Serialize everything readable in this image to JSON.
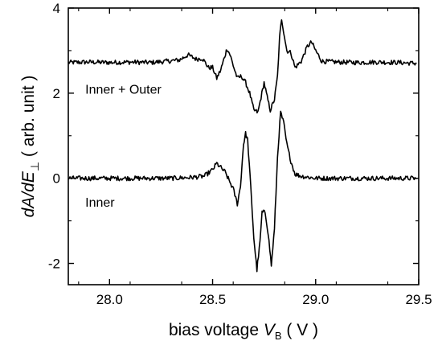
{
  "chart_data": {
    "type": "line",
    "xlabel": {
      "prefix": "bias voltage ",
      "italic": "V",
      "sub": "B",
      "suffix": " ( V )"
    },
    "ylabel": {
      "italic": "dA/dE",
      "sub": "⊥",
      "suffix": " ( arb. unit )"
    },
    "xlim": [
      27.8,
      29.5
    ],
    "ylim": [
      -2.5,
      4
    ],
    "xticks": [
      28.0,
      28.5,
      29.0,
      29.5
    ],
    "xtick_labels": [
      "28.0",
      "28.5",
      "29.0",
      "29.5"
    ],
    "yticks": [
      -2,
      0,
      2,
      4
    ],
    "ytick_labels": [
      "-2",
      "0",
      "2",
      "4"
    ],
    "grid": false,
    "series": [
      {
        "name": "Inner + Outer",
        "color": "#000000",
        "points": [
          [
            27.8,
            2.72
          ],
          [
            27.9,
            2.73
          ],
          [
            28.0,
            2.72
          ],
          [
            28.1,
            2.73
          ],
          [
            28.2,
            2.72
          ],
          [
            28.28,
            2.75
          ],
          [
            28.34,
            2.78
          ],
          [
            28.38,
            2.9
          ],
          [
            28.42,
            2.8
          ],
          [
            28.45,
            2.82
          ],
          [
            28.48,
            2.6
          ],
          [
            28.5,
            2.6
          ],
          [
            28.52,
            2.35
          ],
          [
            28.54,
            2.55
          ],
          [
            28.555,
            2.8
          ],
          [
            28.57,
            3.05
          ],
          [
            28.585,
            2.9
          ],
          [
            28.6,
            2.65
          ],
          [
            28.62,
            2.35
          ],
          [
            28.64,
            2.4
          ],
          [
            28.66,
            2.25
          ],
          [
            28.68,
            2.0
          ],
          [
            28.7,
            1.6
          ],
          [
            28.72,
            1.55
          ],
          [
            28.735,
            1.9
          ],
          [
            28.75,
            2.25
          ],
          [
            28.765,
            1.9
          ],
          [
            28.78,
            1.6
          ],
          [
            28.8,
            1.85
          ],
          [
            28.815,
            2.4
          ],
          [
            28.825,
            3.3
          ],
          [
            28.835,
            3.75
          ],
          [
            28.845,
            3.45
          ],
          [
            28.86,
            3.0
          ],
          [
            28.88,
            2.95
          ],
          [
            28.9,
            2.6
          ],
          [
            28.93,
            2.75
          ],
          [
            28.96,
            3.1
          ],
          [
            28.98,
            3.2
          ],
          [
            29.0,
            3.0
          ],
          [
            29.03,
            2.75
          ],
          [
            29.1,
            2.73
          ],
          [
            29.2,
            2.72
          ],
          [
            29.3,
            2.73
          ],
          [
            29.4,
            2.72
          ],
          [
            29.49,
            2.7
          ]
        ]
      },
      {
        "name": "Inner",
        "color": "#000000",
        "points": [
          [
            27.8,
            0.0
          ],
          [
            27.9,
            0.0
          ],
          [
            28.0,
            0.0
          ],
          [
            28.1,
            0.0
          ],
          [
            28.2,
            0.0
          ],
          [
            28.3,
            0.0
          ],
          [
            28.4,
            0.02
          ],
          [
            28.46,
            0.05
          ],
          [
            28.5,
            0.2
          ],
          [
            28.52,
            0.35
          ],
          [
            28.54,
            0.25
          ],
          [
            28.56,
            0.15
          ],
          [
            28.58,
            -0.05
          ],
          [
            28.6,
            -0.25
          ],
          [
            28.62,
            -0.6
          ],
          [
            28.635,
            -0.2
          ],
          [
            28.65,
            0.8
          ],
          [
            28.66,
            1.05
          ],
          [
            28.67,
            0.9
          ],
          [
            28.685,
            -0.2
          ],
          [
            28.7,
            -1.4
          ],
          [
            28.715,
            -2.15
          ],
          [
            28.73,
            -1.5
          ],
          [
            28.74,
            -0.8
          ],
          [
            28.755,
            -0.8
          ],
          [
            28.77,
            -1.3
          ],
          [
            28.785,
            -2.05
          ],
          [
            28.8,
            -1.2
          ],
          [
            28.815,
            0.5
          ],
          [
            28.83,
            1.55
          ],
          [
            28.845,
            1.3
          ],
          [
            28.86,
            0.8
          ],
          [
            28.88,
            0.4
          ],
          [
            28.9,
            0.1
          ],
          [
            28.93,
            0.05
          ],
          [
            29.0,
            0.0
          ],
          [
            29.1,
            0.0
          ],
          [
            29.2,
            0.0
          ],
          [
            29.3,
            0.0
          ],
          [
            29.4,
            0.0
          ],
          [
            29.49,
            0.0
          ]
        ]
      }
    ],
    "annotations": [
      {
        "text": "Inner + Outer",
        "x": 27.82,
        "y": 2.1
      },
      {
        "text": "Inner",
        "x": 27.82,
        "y": -0.55
      }
    ]
  }
}
